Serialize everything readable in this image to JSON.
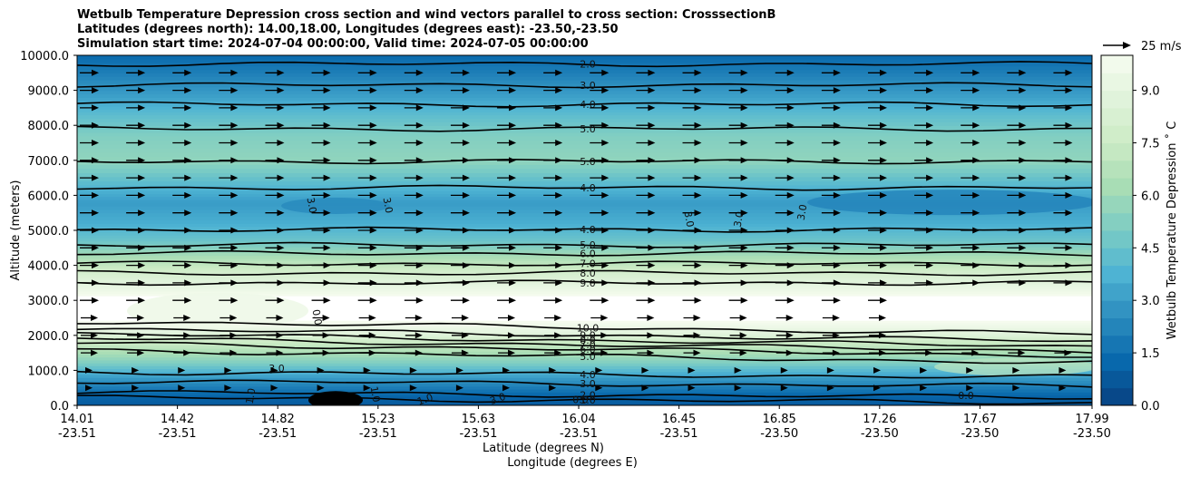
{
  "title_lines": [
    "Wetbulb Temperature Depression cross section and wind vectors parallel to cross section: CrosssectionB",
    "Latitudes (degrees north): 14.00,18.00, Longitudes (degrees east): -23.50,-23.50",
    "Simulation start time: 2024-07-04 00:00:00, Valid time: 2024-07-05 00:00:00"
  ],
  "chart_data": {
    "type": "heatmap",
    "description_fields": {
      "variable": "Wetbulb Temperature Depression",
      "overlay": "wind vectors parallel to cross section"
    },
    "xlabel_lat": "Latitude (degrees N)",
    "xlabel_lon": "Longitude (degrees E)",
    "ylabel": "Altitude (meters)",
    "colorbar_label": "Wetbulb Temperature Depression ˚ C",
    "x_ticks": [
      {
        "lat": "14.01",
        "lon": "-23.51"
      },
      {
        "lat": "14.42",
        "lon": "-23.51"
      },
      {
        "lat": "14.82",
        "lon": "-23.51"
      },
      {
        "lat": "15.23",
        "lon": "-23.51"
      },
      {
        "lat": "15.63",
        "lon": "-23.51"
      },
      {
        "lat": "16.04",
        "lon": "-23.51"
      },
      {
        "lat": "16.45",
        "lon": "-23.51"
      },
      {
        "lat": "16.85",
        "lon": "-23.50"
      },
      {
        "lat": "17.26",
        "lon": "-23.50"
      },
      {
        "lat": "17.67",
        "lon": "-23.50"
      },
      {
        "lat": "17.99",
        "lon": "-23.50"
      }
    ],
    "y_ticks": [
      0,
      1000,
      2000,
      3000,
      4000,
      5000,
      6000,
      7000,
      8000,
      9000,
      10000
    ],
    "y_tick_labels": [
      "0.0",
      "1000.0",
      "2000.0",
      "3000.0",
      "4000.0",
      "5000.0",
      "6000.0",
      "7000.0",
      "8000.0",
      "9000.0",
      "10000.0"
    ],
    "ylim": [
      0,
      10000
    ],
    "colorbar_ticks": [
      0.0,
      1.5,
      3.0,
      4.5,
      6.0,
      7.5,
      9.0
    ],
    "colorbar_tick_labels": [
      "0.0",
      "1.5",
      "3.0",
      "4.5",
      "6.0",
      "7.5",
      "9.0"
    ],
    "colorbar_range": [
      0,
      10
    ],
    "colormap": "GnBu_r",
    "quiver_key": "25 m/s",
    "profile_levels": [
      {
        "z": 0,
        "value": 0.8
      },
      {
        "z": 300,
        "value": 1.2
      },
      {
        "z": 800,
        "value": 3.0
      },
      {
        "z": 1300,
        "value": 5.5
      },
      {
        "z": 1800,
        "value": 7.5
      },
      {
        "z": 2100,
        "value": 9.0
      },
      {
        "z": 2500,
        "value": 10.2
      },
      {
        "z": 3000,
        "value": 10.3
      },
      {
        "z": 3400,
        "value": 9.2
      },
      {
        "z": 3800,
        "value": 8.0
      },
      {
        "z": 4200,
        "value": 6.5
      },
      {
        "z": 4700,
        "value": 4.6
      },
      {
        "z": 5200,
        "value": 3.6
      },
      {
        "z": 5800,
        "value": 3.0
      },
      {
        "z": 6300,
        "value": 4.0
      },
      {
        "z": 7000,
        "value": 5.6
      },
      {
        "z": 7700,
        "value": 5.2
      },
      {
        "z": 8300,
        "value": 4.2
      },
      {
        "z": 8800,
        "value": 3.2
      },
      {
        "z": 9400,
        "value": 2.2
      },
      {
        "z": 10000,
        "value": 1.3
      }
    ],
    "contour_lines": [
      {
        "label": "2.0",
        "z": 9750
      },
      {
        "label": "3.0",
        "z": 9150
      },
      {
        "label": "4.0",
        "z": 8600
      },
      {
        "label": "5.0",
        "z": 7900
      },
      {
        "label": "5.0",
        "z": 6970
      },
      {
        "label": "4.0",
        "z": 6220
      },
      {
        "label": "4.0",
        "z": 5020
      },
      {
        "label": "5.0",
        "z": 4580
      },
      {
        "label": "6.0",
        "z": 4340
      },
      {
        "label": "7.0",
        "z": 4050
      },
      {
        "label": "8.0",
        "z": 3780
      },
      {
        "label": "9.0",
        "z": 3500
      },
      {
        "label": "10.0",
        "z": 2220
      },
      {
        "label": "9.0",
        "z": 2010
      },
      {
        "label": "8.0",
        "z": 1860
      },
      {
        "label": "7.0",
        "z": 1730
      },
      {
        "label": "6.0",
        "z": 1600
      },
      {
        "label": "5.0",
        "z": 1400
      },
      {
        "label": "4.0",
        "z": 880
      },
      {
        "label": "3.0",
        "z": 620
      },
      {
        "label": "2.0",
        "z": 300
      },
      {
        "label": "1.0",
        "z": 150
      }
    ],
    "other_labels": [
      "3.0",
      "3.0",
      "3.0",
      "3.0",
      "3.0",
      "3.0",
      "0.0",
      "1.0",
      "1.0",
      "0.0",
      "1.0",
      "3.0",
      "0.0"
    ],
    "vector_rows_m": [
      500,
      1000,
      1500,
      2000,
      2500,
      3000,
      3500,
      4000,
      4500,
      5000,
      5500,
      6000,
      6500,
      7000,
      7500,
      8000,
      8500,
      9000,
      9500
    ]
  }
}
